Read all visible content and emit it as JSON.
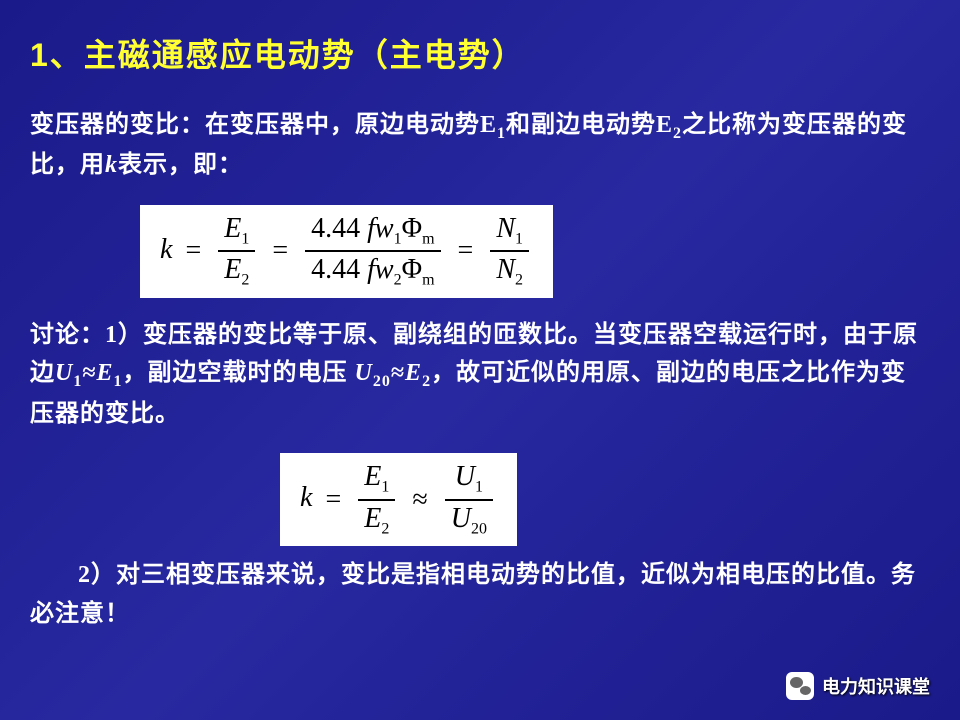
{
  "title": {
    "number": "1",
    "text": "、主磁通感应电动势（主电势）"
  },
  "paragraph1": {
    "prefix": "变压器的变比：在变压器中，原边电动势E",
    "sub1": "1",
    "mid1": "和副边电动势E",
    "sub2": "2",
    "suffix": "之比称为变压器的变比，用",
    "kvar": "k",
    "end": "表示，即："
  },
  "formula1": {
    "k": "k",
    "eq": "=",
    "E1": "E",
    "E1sub": "1",
    "E2": "E",
    "E2sub": "2",
    "const": "4.44",
    "fw": "fw",
    "phi": "Φ",
    "msub": "m",
    "w1sub": "1",
    "w2sub": "2",
    "N": "N",
    "N1sub": "1",
    "N2sub": "2"
  },
  "discuss": {
    "label": "讨论：1",
    "part1": "）变压器的变比等于原、副绕组的匝数比。当变压器空载运行时，由于原边",
    "U1": "U",
    "U1sub": "1",
    "approx": "≈",
    "E1": "E",
    "E1sub": "1",
    "part2": "，副边空载时的电压 ",
    "U20": "U",
    "U20sub": "20",
    "E2": "E",
    "E2sub": "2",
    "part3": "，故可近似的用原、副边的电压之比作为变压器的变比。"
  },
  "formula2": {
    "k": "k",
    "eq": "=",
    "approx": "≈",
    "E1": "E",
    "E1sub": "1",
    "E2": "E",
    "E2sub": "2",
    "U1": "U",
    "U1sub": "1",
    "U20": "U",
    "U20sub": "20"
  },
  "point2": {
    "label": "2",
    "text": "）对三相变压器来说，变比是指相电动势的比值，近似为相电压的比值。务必注意！"
  },
  "watermark": "电力知识课堂",
  "colors": {
    "background_start": "#1a1a8a",
    "background_mid": "#2828a0",
    "title_color": "#ffff33",
    "text_color": "#ffffff",
    "formula_bg": "#ffffff",
    "formula_text": "#000000"
  }
}
